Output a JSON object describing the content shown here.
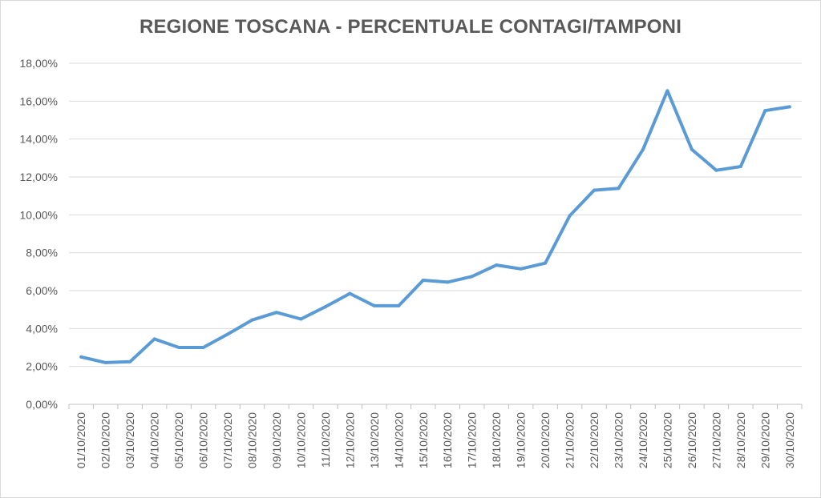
{
  "chart_data": {
    "type": "line",
    "title": "REGIONE TOSCANA - PERCENTUALE CONTAGI/TAMPONI",
    "xlabel": "",
    "ylabel": "",
    "ylim": [
      0,
      18
    ],
    "y_ticks": [
      0,
      2,
      4,
      6,
      8,
      10,
      12,
      14,
      16,
      18
    ],
    "y_tick_labels": [
      "0,00%",
      "2,00%",
      "4,00%",
      "6,00%",
      "8,00%",
      "10,00%",
      "12,00%",
      "14,00%",
      "16,00%",
      "18,00%"
    ],
    "grid": true,
    "legend": "none",
    "line_color": "#5b9bd5",
    "categories": [
      "01/10/2020",
      "02/10/2020",
      "03/10/2020",
      "04/10/2020",
      "05/10/2020",
      "06/10/2020",
      "07/10/2020",
      "08/10/2020",
      "09/10/2020",
      "10/10/2020",
      "11/10/2020",
      "12/10/2020",
      "13/10/2020",
      "14/10/2020",
      "15/10/2020",
      "16/10/2020",
      "17/10/2020",
      "18/10/2020",
      "19/10/2020",
      "20/10/2020",
      "21/10/2020",
      "22/10/2020",
      "23/10/2020",
      "24/10/2020",
      "25/10/2020",
      "26/10/2020",
      "27/10/2020",
      "28/10/2020",
      "29/10/2020",
      "30/10/2020"
    ],
    "values": [
      2.5,
      2.2,
      2.25,
      3.45,
      3.0,
      3.0,
      3.7,
      4.45,
      4.85,
      4.5,
      5.15,
      5.85,
      5.2,
      5.2,
      6.55,
      6.45,
      6.75,
      7.35,
      7.15,
      7.45,
      9.95,
      11.3,
      11.4,
      13.45,
      16.55,
      13.45,
      12.35,
      12.55,
      15.5,
      15.7
    ]
  }
}
